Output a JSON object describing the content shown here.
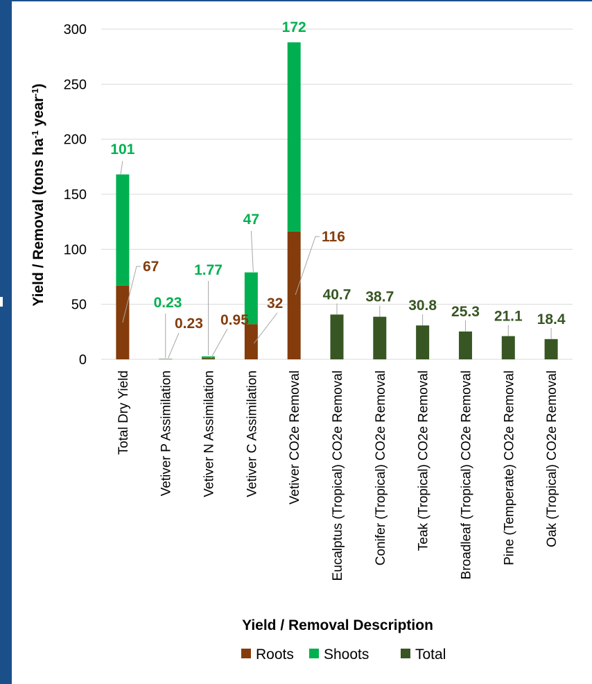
{
  "chart_data": {
    "type": "bar",
    "stacked": true,
    "xlabel": "Yield / Removal Description",
    "ylabel": "Yield / Removal  (tons ha",
    "ylabel_sup1": "-1",
    "ylabel_mid": " year",
    "ylabel_sup2": "-1",
    "ylabel_end": ")",
    "ylim": [
      0,
      300
    ],
    "yticks": [
      0,
      50,
      100,
      150,
      200,
      250,
      300
    ],
    "grid": true,
    "legend_position": "bottom",
    "categories": [
      "Total Dry Yield",
      "Vetiver P Assimilation",
      "Vetiver N Assimilation",
      "Vetiver C Assimilation",
      "Vetiver CO2e Removal",
      "Eucalptus (Tropical) CO2e Removal",
      "Conifer (Tropical) CO2e Removal",
      "Teak (Tropical) CO2e Removal",
      "Broadleaf (Tropical) CO2e Removal",
      "Pine (Temperate) CO2e Removal",
      "Oak (Tropical) CO2e Removal"
    ],
    "series": [
      {
        "name": "Roots",
        "color": "#843c0c",
        "values": [
          67,
          0.23,
          0.95,
          32,
          116,
          null,
          null,
          null,
          null,
          null,
          null
        ],
        "labels": [
          "67",
          "0.23",
          "0.95",
          "32",
          "116",
          "",
          "",
          "",
          "",
          "",
          ""
        ]
      },
      {
        "name": "Shoots",
        "color": "#00b050",
        "values": [
          101,
          0.23,
          1.77,
          47,
          172,
          null,
          null,
          null,
          null,
          null,
          null
        ],
        "labels": [
          "101",
          "0.23",
          "1.77",
          "47",
          "172",
          "",
          "",
          "",
          "",
          "",
          ""
        ]
      },
      {
        "name": "Total",
        "color": "#375623",
        "values": [
          null,
          null,
          null,
          null,
          null,
          40.7,
          38.7,
          30.8,
          25.3,
          21.1,
          18.4
        ],
        "labels": [
          "",
          "",
          "",
          "",
          "",
          "40.7",
          "38.7",
          "30.8",
          "25.3",
          "21.1",
          "18.4"
        ]
      }
    ]
  }
}
